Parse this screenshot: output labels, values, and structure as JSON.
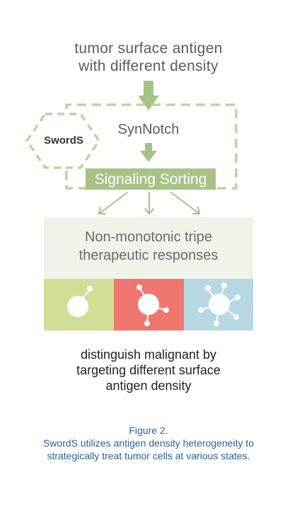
{
  "diagram": {
    "top_text": [
      "tumor surface antigen",
      "with different density"
    ],
    "synnotch": "SynNotch",
    "swords": "SwordS",
    "signaling_sorting": "Signaling Sorting",
    "responses": [
      "Non-monotonic tripe",
      "therapeutic responses"
    ],
    "bottom_text": [
      "distinguish malignant by",
      "targeting different surface",
      "antigen density"
    ]
  },
  "caption": {
    "figure": "Figure 2.",
    "text": [
      "SwordS utilizes antigen density heterogeneity to",
      "strategically treat tumor cells at various states."
    ]
  },
  "colors": {
    "accent_green": "#a6c285",
    "dash_green": "#bcd4a1",
    "panel_bg": "#eef4ea",
    "lime": "#cfdf95",
    "coral": "#f07670",
    "light_blue": "#b7d8e2",
    "caption_blue": "#2a5f9e"
  }
}
